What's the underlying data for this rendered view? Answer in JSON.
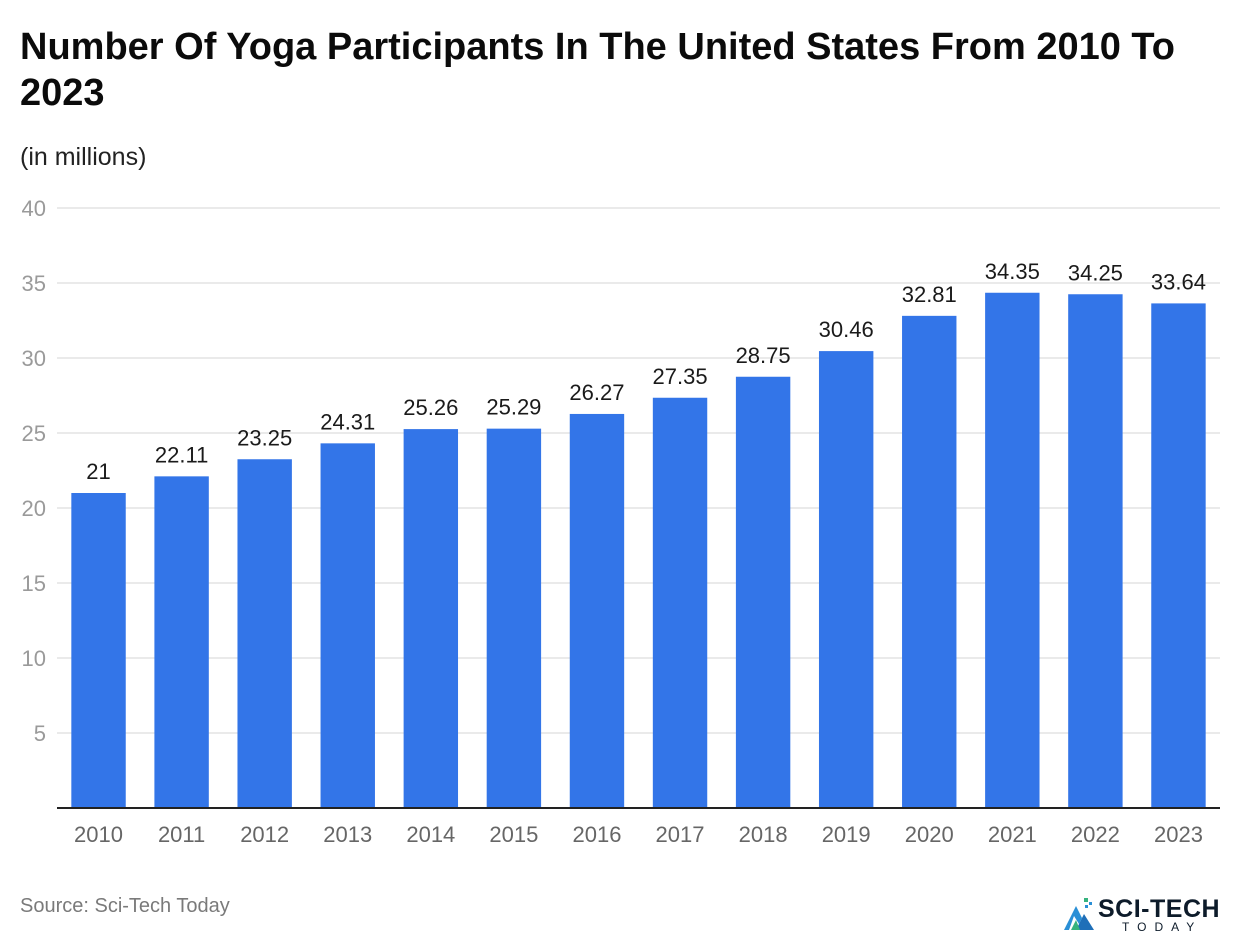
{
  "title": "Number Of Yoga Participants In The United States From 2010 To 2023",
  "subtitle": "(in millions)",
  "source": "Source: Sci-Tech Today",
  "logo": {
    "text": "SCI-TECH",
    "subtext": "TODAY"
  },
  "colors": {
    "bar": "#3375e8",
    "grid": "#dedede",
    "axis": "#222222",
    "tick_label": "#9a9a9a",
    "category_label": "#666666",
    "value_label": "#1a1a1a"
  },
  "chart_data": {
    "type": "bar",
    "title": "Number Of Yoga Participants In The United States From 2010 To 2023",
    "subtitle": "(in millions)",
    "xlabel": "",
    "ylabel": "",
    "ylim": [
      0,
      40
    ],
    "yticks": [
      5,
      10,
      15,
      20,
      25,
      30,
      35,
      40
    ],
    "grid": true,
    "legend": "none",
    "categories": [
      "2010",
      "2011",
      "2012",
      "2013",
      "2014",
      "2015",
      "2016",
      "2017",
      "2018",
      "2019",
      "2020",
      "2021",
      "2022",
      "2023"
    ],
    "values": [
      21,
      22.11,
      23.25,
      24.31,
      25.26,
      25.29,
      26.27,
      27.35,
      28.75,
      30.46,
      32.81,
      34.35,
      34.25,
      33.64
    ],
    "value_labels": [
      "21",
      "22.11",
      "23.25",
      "24.31",
      "25.26",
      "25.29",
      "26.27",
      "27.35",
      "28.75",
      "30.46",
      "32.81",
      "34.35",
      "34.25",
      "33.64"
    ]
  }
}
